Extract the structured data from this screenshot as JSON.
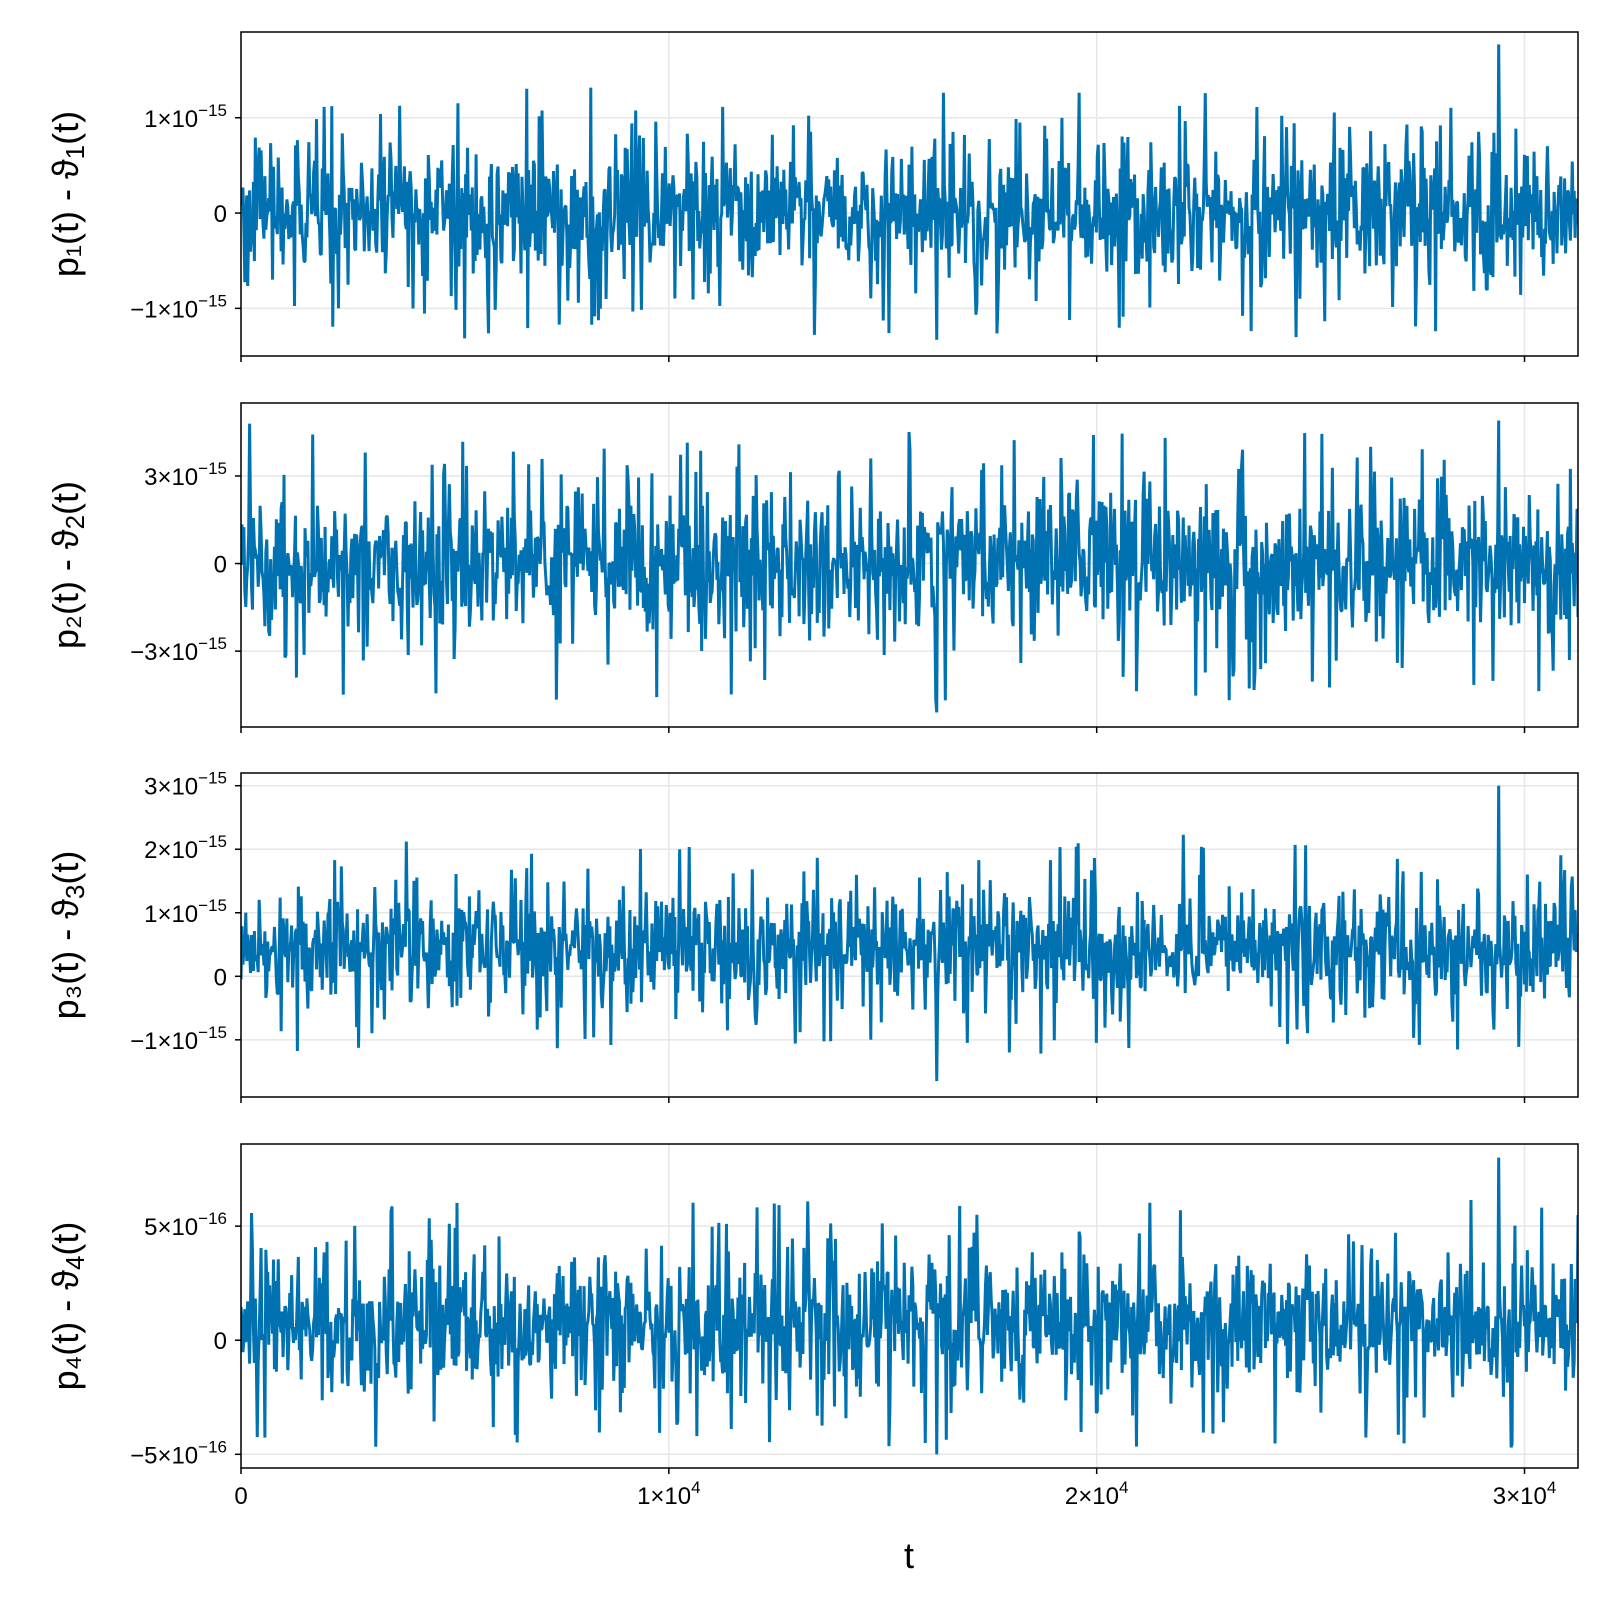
{
  "chart_data": {
    "type": "line",
    "shared_x": {
      "label": "t",
      "lim": [
        0,
        31250
      ],
      "ticks": [
        0,
        10000,
        20000,
        30000
      ],
      "tick_labels": [
        {
          "mantissa": "0",
          "exponent": ""
        },
        {
          "mantissa": "1×10",
          "exponent": "4"
        },
        {
          "mantissa": "2×10",
          "exponent": "4"
        },
        {
          "mantissa": "3×10",
          "exponent": "4"
        }
      ]
    },
    "color": "#0072b2",
    "grid": true,
    "panels": [
      {
        "ylabel": {
          "base": "p₁(t) - ϑ",
          "sub": "1",
          "tail": "(t)"
        },
        "ylim": [
          -1.5e-15,
          1.9e-15
        ],
        "yticks": [
          -1e-15,
          0,
          1e-15
        ],
        "ytick_labels": [
          {
            "mantissa": "−1×10",
            "exponent": "−15"
          },
          {
            "mantissa": "0",
            "exponent": ""
          },
          {
            "mantissa": "1×10",
            "exponent": "−15"
          }
        ],
        "series": {
          "n_points": 1400,
          "center": 0,
          "spread": 5.5e-16,
          "min": -1.33e-15,
          "max": 1.77e-15
        }
      },
      {
        "ylabel": {
          "base": "p₂(t) - ϑ",
          "sub": "2",
          "tail": "(t)"
        },
        "ylim": [
          -5.6e-15,
          5.5e-15
        ],
        "yticks": [
          -3e-15,
          0,
          3e-15
        ],
        "ytick_labels": [
          {
            "mantissa": "−3×10",
            "exponent": "−15"
          },
          {
            "mantissa": "0",
            "exponent": ""
          },
          {
            "mantissa": "3×10",
            "exponent": "−15"
          }
        ],
        "series": {
          "n_points": 1400,
          "center": 0,
          "spread": 2e-15,
          "min": -5.1e-15,
          "max": 4.9e-15
        }
      },
      {
        "ylabel": {
          "base": "p₃(t) - ϑ",
          "sub": "3",
          "tail": "(t)"
        },
        "ylim": [
          -1.9e-15,
          3.2e-15
        ],
        "yticks": [
          -1e-15,
          0,
          1e-15,
          2e-15,
          3e-15
        ],
        "ytick_labels": [
          {
            "mantissa": "−1×10",
            "exponent": "−15"
          },
          {
            "mantissa": "0",
            "exponent": ""
          },
          {
            "mantissa": "1×10",
            "exponent": "−15"
          },
          {
            "mantissa": "2×10",
            "exponent": "−15"
          },
          {
            "mantissa": "3×10",
            "exponent": "−15"
          }
        ],
        "series": {
          "n_points": 1400,
          "center": 4.5e-16,
          "spread": 7e-16,
          "min": -1.65e-15,
          "max": 3e-15
        }
      },
      {
        "ylabel": {
          "base": "p₄(t) - ϑ",
          "sub": "4",
          "tail": "(t)"
        },
        "ylim": [
          -5.6e-16,
          8.6e-16
        ],
        "yticks": [
          -5e-16,
          0,
          5e-16
        ],
        "ytick_labels": [
          {
            "mantissa": "−5×10",
            "exponent": "−16"
          },
          {
            "mantissa": "0",
            "exponent": ""
          },
          {
            "mantissa": "5×10",
            "exponent": "−16"
          }
        ],
        "series": {
          "n_points": 1400,
          "center": 7e-17,
          "spread": 2.3e-16,
          "min": -5e-16,
          "max": 8e-16
        }
      }
    ]
  }
}
